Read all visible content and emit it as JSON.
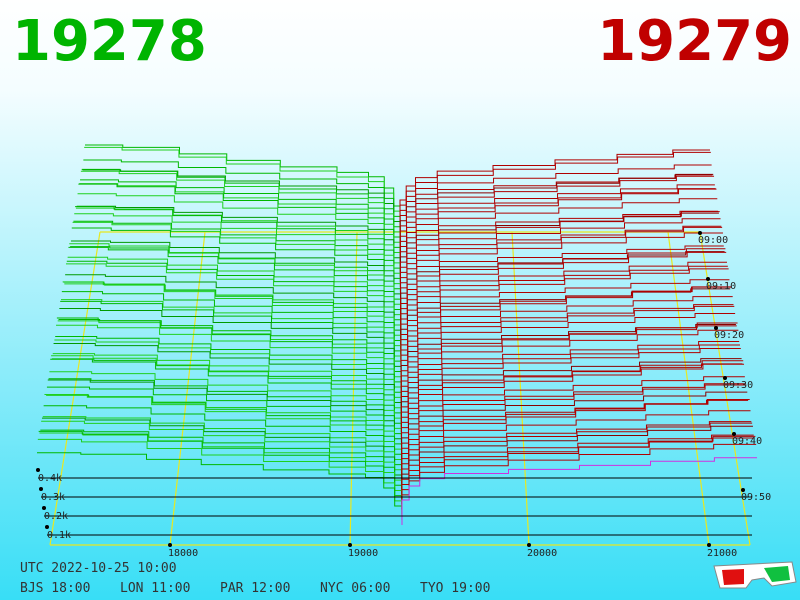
{
  "header": {
    "bid": "19278",
    "ask": "19279"
  },
  "axes": {
    "price_ticks": [
      "18000",
      "19000",
      "20000",
      "21000"
    ],
    "depth_ticks": [
      "0.4k",
      "0.3k",
      "0.2k",
      "0.1k"
    ],
    "time_ticks": [
      "09:00",
      "09:10",
      "09:20",
      "09:30",
      "09:40",
      "09:50"
    ]
  },
  "footer": {
    "utc": "UTC 2022-10-25 10:00",
    "zones": [
      "BJS 18:00",
      "LON 11:00",
      "PAR 12:00",
      "NYC 06:00",
      "TYO 19:00"
    ]
  }
}
